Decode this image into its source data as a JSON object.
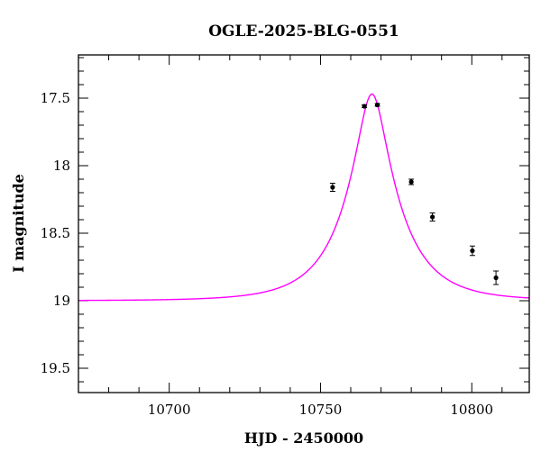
{
  "chart_data": {
    "type": "scatter",
    "title": "OGLE-2025-BLG-0551",
    "xlabel": "HJD - 2450000",
    "ylabel": "I magnitude",
    "xlim": [
      10670,
      10819
    ],
    "ylim": [
      19.68,
      17.18
    ],
    "y_inverted": true,
    "x_ticks": [
      10700,
      10750,
      10800
    ],
    "y_ticks": [
      17.5,
      18,
      18.5,
      19,
      19.5
    ],
    "y_tick_labels": [
      "17.5",
      "18",
      "18.5",
      "19",
      "19.5"
    ],
    "x_minor_step": 10,
    "y_minor_step": 0.1,
    "grid": false,
    "series": [
      {
        "kind": "points_with_errorbars",
        "color": "#000000",
        "x": [
          10754.0,
          10764.5,
          10768.8,
          10780.0,
          10787.0,
          10800.2,
          10808.0
        ],
        "y": [
          18.16,
          17.56,
          17.55,
          18.12,
          18.38,
          18.63,
          18.83
        ],
        "yerr": [
          0.03,
          0.01,
          0.01,
          0.02,
          0.03,
          0.035,
          0.05
        ]
      },
      {
        "kind": "model_curve",
        "color": "#ff00ff",
        "t0": 10767.0,
        "tE": 18.0,
        "u0": 0.25,
        "baseline_mag": 19.0,
        "blend_fraction": 1.0
      }
    ]
  }
}
